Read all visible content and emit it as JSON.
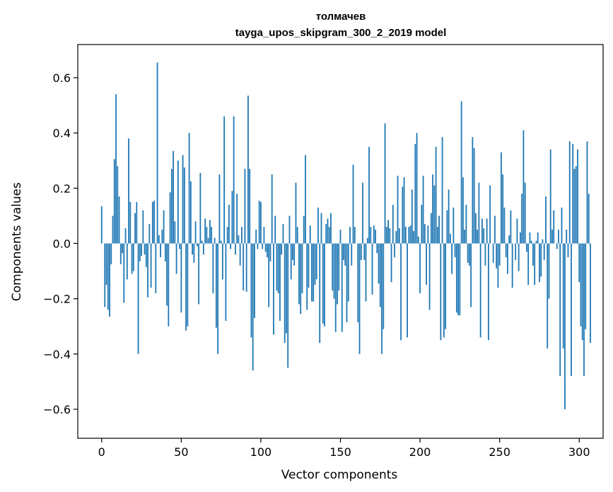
{
  "chart_data": {
    "type": "bar",
    "title_line1": "толмачев",
    "title_line2": "tayga_upos_skipgram_300_2_2019 model",
    "xlabel": "Vector components",
    "ylabel": "Components values",
    "xlim": [
      -15,
      315
    ],
    "ylim": [
      -0.705,
      0.72
    ],
    "xticks": [
      0,
      50,
      100,
      150,
      200,
      250,
      300
    ],
    "xtick_labels": [
      "0",
      "50",
      "100",
      "150",
      "200",
      "250",
      "300"
    ],
    "yticks": [
      -0.6,
      -0.4,
      -0.2,
      0.0,
      0.2,
      0.4,
      0.6
    ],
    "ytick_labels": [
      "−0.6",
      "−0.4",
      "−0.2",
      "0.0",
      "0.2",
      "0.4",
      "0.6"
    ],
    "grid": false,
    "bar_color": "#1f77b4",
    "x_start": 0,
    "values": [
      0.135,
      0.0,
      -0.23,
      -0.15,
      -0.24,
      -0.265,
      -0.075,
      0.1,
      0.305,
      0.54,
      0.28,
      0.17,
      -0.075,
      -0.035,
      -0.215,
      0.055,
      -0.13,
      0.38,
      0.15,
      -0.11,
      -0.1,
      0.11,
      0.15,
      -0.4,
      -0.065,
      -0.045,
      0.12,
      -0.04,
      -0.085,
      -0.195,
      0.07,
      -0.16,
      0.15,
      0.155,
      -0.18,
      0.655,
      0.03,
      -0.05,
      0.05,
      0.12,
      -0.065,
      -0.225,
      -0.3,
      0.185,
      0.27,
      0.335,
      0.08,
      -0.11,
      0.3,
      -0.02,
      -0.25,
      0.32,
      0.275,
      -0.315,
      -0.3,
      0.4,
      0.225,
      -0.04,
      -0.07,
      0.08,
      -0.01,
      -0.22,
      0.255,
      0.01,
      -0.04,
      0.09,
      0.06,
      0.02,
      0.085,
      0.06,
      -0.18,
      0.02,
      -0.305,
      -0.4,
      0.25,
      0.01,
      -0.13,
      0.46,
      -0.28,
      0.06,
      0.14,
      -0.02,
      0.19,
      0.46,
      -0.04,
      0.18,
      0.03,
      -0.08,
      0.06,
      -0.17,
      0.27,
      -0.175,
      0.535,
      0.27,
      -0.34,
      -0.46,
      -0.27,
      0.05,
      -0.02,
      0.155,
      0.15,
      -0.02,
      0.06,
      -0.03,
      -0.05,
      -0.23,
      -0.065,
      0.25,
      -0.33,
      0.1,
      -0.17,
      -0.18,
      -0.28,
      -0.04,
      0.07,
      -0.36,
      -0.325,
      -0.45,
      0.1,
      -0.13,
      -0.06,
      -0.08,
      0.22,
      0.06,
      -0.22,
      -0.255,
      -0.18,
      0.1,
      0.32,
      -0.24,
      -0.16,
      0.065,
      -0.21,
      -0.21,
      -0.15,
      -0.13,
      0.13,
      -0.36,
      0.11,
      -0.29,
      -0.3,
      0.07,
      0.09,
      0.06,
      0.11,
      -0.17,
      -0.2,
      -0.32,
      -0.22,
      -0.17,
      0.05,
      -0.32,
      -0.06,
      -0.08,
      -0.285,
      -0.21,
      0.06,
      -0.08,
      0.285,
      0.06,
      0.0,
      -0.285,
      -0.4,
      -0.06,
      0.22,
      -0.06,
      -0.21,
      0.02,
      0.35,
      0.06,
      -0.185,
      0.065,
      0.05,
      -0.035,
      -0.145,
      -0.23,
      -0.4,
      -0.31,
      0.435,
      0.06,
      0.085,
      0.055,
      -0.14,
      0.14,
      -0.05,
      0.045,
      0.245,
      0.055,
      -0.35,
      0.205,
      0.24,
      0.06,
      -0.34,
      0.06,
      0.065,
      0.195,
      0.045,
      0.36,
      0.4,
      0.025,
      -0.18,
      0.14,
      0.245,
      0.07,
      -0.15,
      0.065,
      -0.24,
      0.11,
      0.25,
      0.21,
      0.35,
      0.06,
      0.1,
      -0.35,
      0.385,
      -0.34,
      -0.31,
      0.12,
      0.195,
      0.035,
      -0.11,
      0.13,
      -0.05,
      -0.25,
      -0.26,
      -0.26,
      0.515,
      0.24,
      0.05,
      0.14,
      -0.07,
      -0.08,
      -0.23,
      0.385,
      0.345,
      0.11,
      0.05,
      0.22,
      -0.34,
      0.09,
      0.055,
      -0.08,
      0.09,
      -0.35,
      0.21,
      0.0,
      -0.07,
      0.1,
      -0.09,
      -0.16,
      -0.08,
      0.33,
      0.25,
      0.13,
      -0.05,
      -0.11,
      0.03,
      0.12,
      -0.16,
      0.0,
      -0.06,
      0.09,
      -0.1,
      0.04,
      0.18,
      0.41,
      0.22,
      -0.03,
      -0.15,
      0.04,
      0.01,
      -0.08,
      -0.15,
      0.01,
      0.04,
      -0.14,
      -0.12,
      0.015,
      -0.06,
      0.17,
      -0.38,
      -0.2,
      0.34,
      0.05,
      0.12,
      0.0,
      -0.02,
      0.05,
      -0.48,
      0.13,
      -0.38,
      -0.6,
      0.05,
      -0.05,
      0.37,
      -0.48,
      0.36,
      0.27,
      0.28,
      0.34,
      -0.14,
      -0.3,
      -0.35,
      -0.48,
      -0.31,
      0.37,
      0.18,
      -0.36
    ]
  }
}
